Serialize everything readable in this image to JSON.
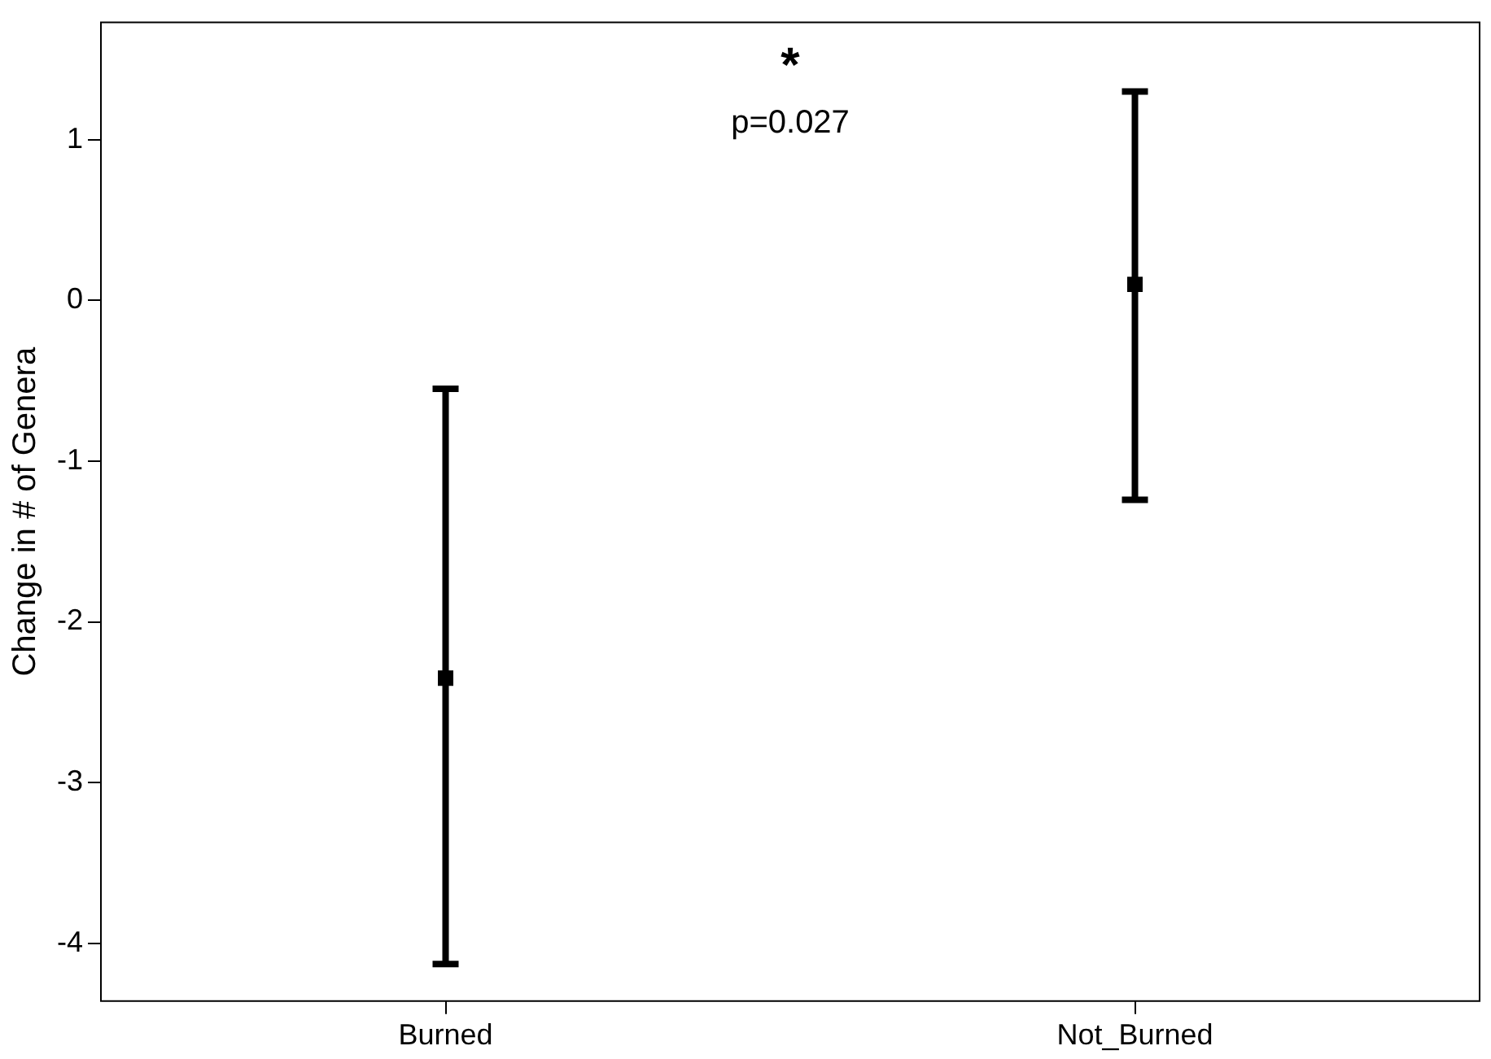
{
  "chart_data": {
    "type": "scatter",
    "ylabel": "Change in # of Genera",
    "categories": [
      "Burned",
      "Not_Burned"
    ],
    "series": [
      {
        "color": "#000000",
        "values": [
          -2.35,
          0.1
        ],
        "errors": [
          [
            -4.13,
            -0.55
          ],
          [
            -1.24,
            1.3
          ]
        ]
      }
    ],
    "ylim": [
      -4.36,
      1.73
    ],
    "yticks": [
      -4,
      -3,
      -2,
      -1,
      0,
      1
    ],
    "grid": false,
    "legend": false,
    "marker": "square",
    "annotations": [
      "*",
      "p=0.027"
    ]
  }
}
